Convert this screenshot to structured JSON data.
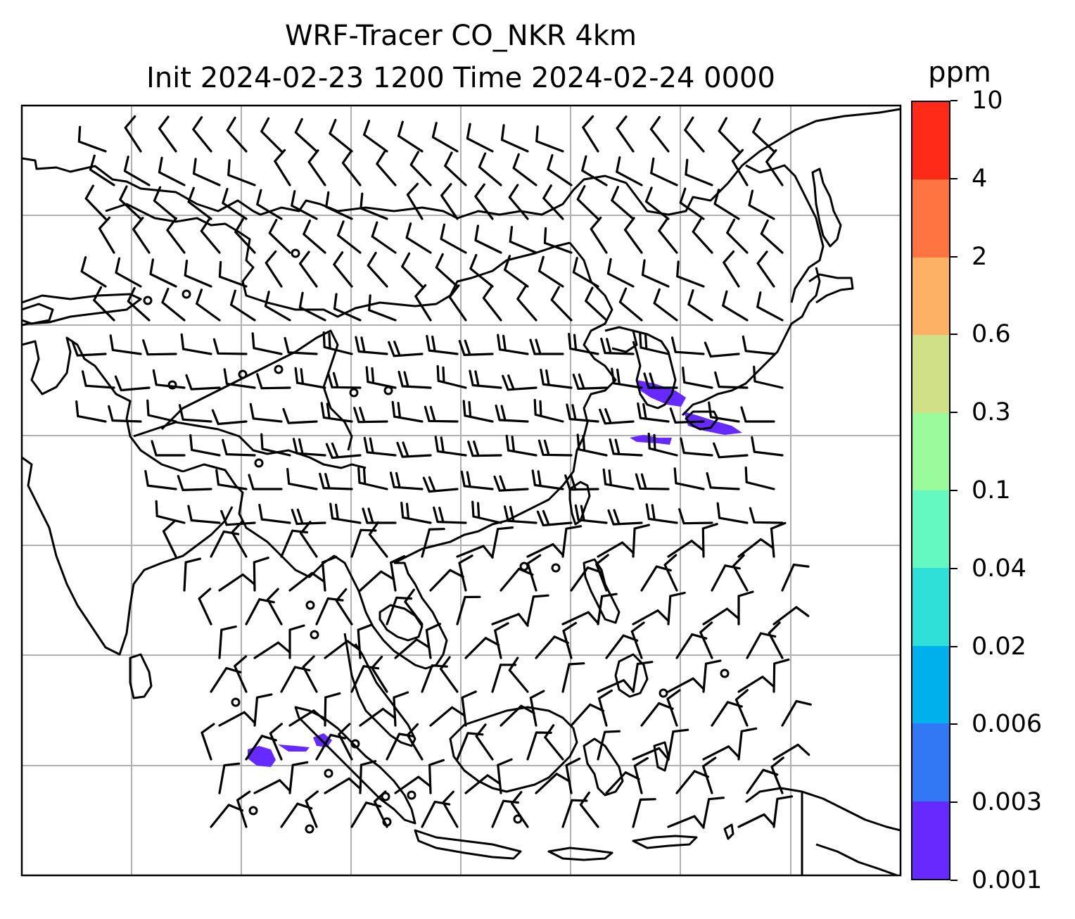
{
  "title": {
    "line1": "WRF-Tracer CO_NKR 4km",
    "line2": "Init 2024-02-23 1200 Time 2024-02-24 0000"
  },
  "colorbar": {
    "unit": "ppm",
    "levels": [
      "0.001",
      "0.003",
      "0.006",
      "0.02",
      "0.04",
      "0.1",
      "0.3",
      "0.6",
      "2",
      "4",
      "10"
    ],
    "colors": [
      "#6629ff",
      "#3277f4",
      "#00b0ec",
      "#2fe0d8",
      "#64f9c0",
      "#99fb99",
      "#cfe087",
      "#fdb164",
      "#ff7440",
      "#ff2b18"
    ]
  },
  "map": {
    "gridlines": true,
    "coastline_color": "#000000",
    "tracer_fill_color": "#6629ff",
    "tracer_fill_level": "0.001",
    "wind_barbs": true,
    "calm_markers": true
  }
}
